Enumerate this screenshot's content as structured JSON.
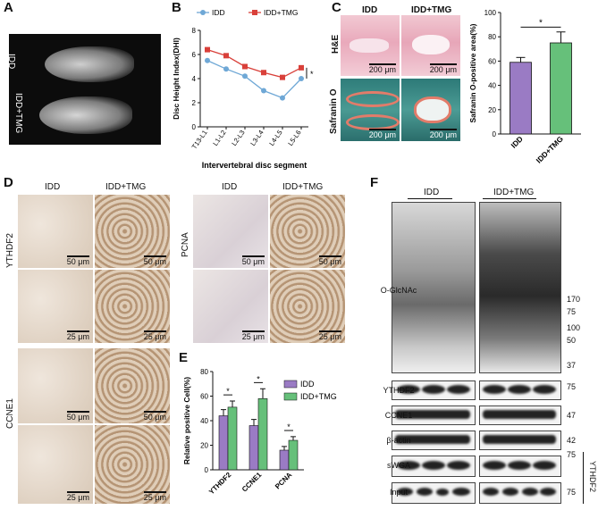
{
  "panels": {
    "A": {
      "letter": "A",
      "group1": "IDD",
      "group2": "IDD+TMG"
    },
    "B": {
      "letter": "B"
    },
    "C": {
      "letter": "C",
      "col1": "IDD",
      "col2": "IDD+TMG",
      "row1": "H&E",
      "row2": "Safranin O",
      "scale": "200 μm",
      "ylabel": "Safranin O-positive area(%)",
      "sig": "*"
    },
    "D": {
      "letter": "D",
      "col1": "IDD",
      "col2": "IDD+TMG",
      "markers": [
        "YTHDF2",
        "PCNA",
        "CCNE1"
      ],
      "scale50": "50 μm",
      "scale25": "25 μm"
    },
    "E": {
      "letter": "E"
    },
    "F": {
      "letter": "F",
      "lane1": "IDD",
      "lane2": "IDD+TMG",
      "rows": [
        "O-GlcNAc",
        "YTHDF2",
        "CCNE1",
        "β-actin",
        "sWGA",
        "Input"
      ],
      "mw": [
        "170",
        "75",
        "100",
        "50",
        "37",
        "75",
        "47",
        "42",
        "75",
        "75"
      ],
      "side": "YTHDF2"
    }
  },
  "chart_data": [
    {
      "id": "B",
      "type": "line",
      "title": "",
      "xlabel": "Intervertebral disc segment",
      "ylabel": "Disc Height Index(DHI)",
      "categories": [
        "T13-L1",
        "L1-L2",
        "L2-L3",
        "L3-L4",
        "L4-L5",
        "L5-L6"
      ],
      "ylim": [
        0,
        8
      ],
      "yticks": [
        "0",
        "2",
        "4",
        "6",
        "8"
      ],
      "legend_position": "top",
      "series": [
        {
          "name": "IDD",
          "color": "#6fa8d6",
          "values": [
            5.5,
            4.8,
            4.2,
            3.0,
            2.4,
            4.0
          ]
        },
        {
          "name": "IDD+TMG",
          "color": "#d9403a",
          "values": [
            6.4,
            5.9,
            5.0,
            4.5,
            4.1,
            4.9
          ]
        }
      ],
      "annotation": "*"
    },
    {
      "id": "C",
      "type": "bar",
      "title": "",
      "xlabel": "",
      "ylabel": "Safranin O-positive area(%)",
      "categories": [
        "IDD",
        "IDD+TMG"
      ],
      "values": [
        59,
        75
      ],
      "errors": [
        4,
        9
      ],
      "colors": [
        "#9a7bc4",
        "#66c07a"
      ],
      "ylim": [
        0,
        100
      ],
      "yticks": [
        "0",
        "20",
        "40",
        "60",
        "80",
        "100"
      ],
      "annotation": "*"
    },
    {
      "id": "E",
      "type": "bar",
      "title": "",
      "xlabel": "",
      "ylabel": "Relative positive Cell(%)",
      "categories": [
        "YTHDF2",
        "CCNE1",
        "PCNA"
      ],
      "ylim": [
        0,
        80
      ],
      "yticks": [
        "0",
        "20",
        "40",
        "60",
        "80"
      ],
      "legend_position": "top-right",
      "series": [
        {
          "name": "IDD",
          "color": "#9a7bc4",
          "values": [
            44,
            36,
            16
          ],
          "errors": [
            5,
            5,
            3
          ]
        },
        {
          "name": "IDD+TMG",
          "color": "#66c07a",
          "values": [
            51,
            58,
            24
          ],
          "errors": [
            5,
            8,
            3
          ]
        }
      ],
      "annotations": [
        "*",
        "*",
        "*"
      ]
    }
  ]
}
